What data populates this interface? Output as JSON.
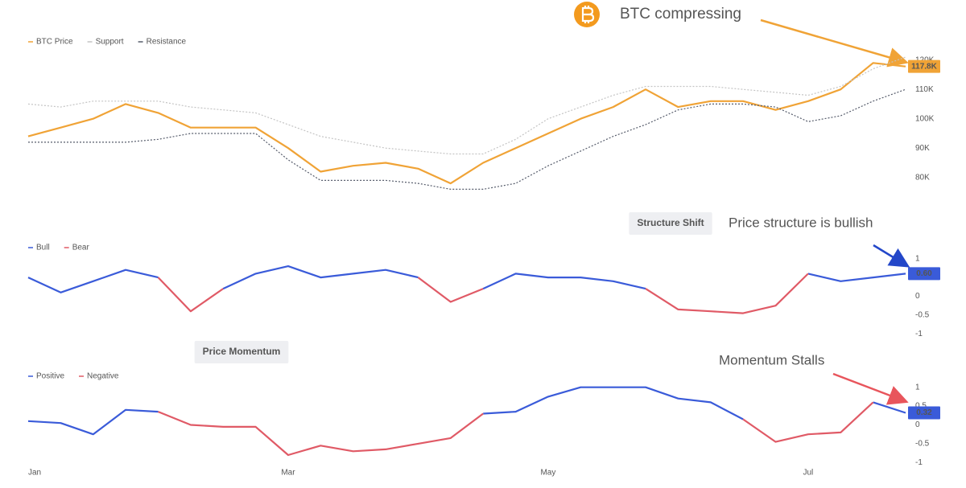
{
  "chart_data": [
    {
      "type": "line",
      "annotation": "BTC compressing",
      "ylim": [
        72000,
        124000
      ],
      "yticks": [
        {
          "value": 80000,
          "label": "80K"
        },
        {
          "value": 90000,
          "label": "90K"
        },
        {
          "value": 100000,
          "label": "100K"
        },
        {
          "value": 110000,
          "label": "110K"
        },
        {
          "value": 120000,
          "label": "120K"
        }
      ],
      "series": [
        {
          "name": "BTC Price",
          "color": "#f0a336",
          "value_tag": true,
          "values": [
            94000,
            97000,
            100000,
            105000,
            102000,
            97000,
            97000,
            97000,
            90000,
            82000,
            84000,
            85000,
            83000,
            78000,
            85000,
            90000,
            95000,
            100000,
            104000,
            110000,
            104000,
            106000,
            106000,
            103000,
            106000,
            110000,
            119000,
            117800
          ],
          "value_labels": [
            null,
            null,
            null,
            null,
            null,
            null,
            null,
            null,
            null,
            null,
            null,
            null,
            null,
            null,
            null,
            null,
            null,
            null,
            null,
            null,
            null,
            null,
            null,
            null,
            null,
            null,
            null,
            "117.8K"
          ]
        },
        {
          "name": "Support",
          "color": "#c4c4c4",
          "dashed": true,
          "values": [
            105000,
            104000,
            106000,
            106000,
            106000,
            104000,
            103000,
            102000,
            98000,
            94000,
            92000,
            90000,
            89000,
            88000,
            88000,
            93000,
            100000,
            104000,
            108000,
            111000,
            111000,
            111000,
            110000,
            109000,
            108000,
            111000,
            117000,
            121000
          ]
        },
        {
          "name": "Resistance",
          "color": "#565c6b",
          "dashed": true,
          "values": [
            92000,
            92000,
            92000,
            92000,
            93000,
            95000,
            95000,
            95000,
            86000,
            79000,
            79000,
            79000,
            78000,
            76000,
            76000,
            78000,
            84000,
            89000,
            94000,
            98000,
            103000,
            105000,
            105000,
            104000,
            99000,
            101000,
            106000,
            110000
          ]
        }
      ]
    },
    {
      "type": "line",
      "title": "Structure Shift",
      "annotation": "Price structure is bullish",
      "ylim": [
        -1.1,
        1.25
      ],
      "yticks": [
        -1,
        -0.5,
        0,
        0.5,
        1
      ],
      "series": [
        {
          "name": "Bull",
          "color": "#3a5bd9",
          "value_tag": true,
          "values": [
            0.5,
            0.1,
            0.4,
            0.7,
            0.5,
            null,
            0.2,
            0.6,
            0.8,
            0.5,
            0.6,
            0.7,
            0.5,
            null,
            0.2,
            0.6,
            0.5,
            0.5,
            0.4,
            0.2,
            null,
            null,
            null,
            null,
            0.6,
            0.4,
            0.5,
            0.6
          ],
          "value_labels": [
            null,
            null,
            null,
            null,
            null,
            null,
            null,
            null,
            null,
            null,
            null,
            null,
            null,
            null,
            null,
            null,
            null,
            null,
            null,
            null,
            null,
            null,
            null,
            null,
            null,
            null,
            null,
            "0.60"
          ]
        },
        {
          "name": "Bear",
          "color": "#e05a66",
          "values": [
            null,
            null,
            null,
            null,
            0.5,
            -0.4,
            0.2,
            null,
            null,
            null,
            null,
            null,
            0.5,
            -0.15,
            0.2,
            null,
            null,
            null,
            null,
            0.2,
            -0.35,
            -0.4,
            -0.45,
            -0.25,
            0.6,
            null,
            null,
            null
          ]
        }
      ]
    },
    {
      "type": "line",
      "title": "Price Momentum",
      "annotation": "Momentum Stalls",
      "ylim": [
        -1.1,
        1.25
      ],
      "yticks": [
        -1,
        -0.5,
        0,
        0.5,
        1
      ],
      "categories": [
        "Jan",
        null,
        null,
        null,
        null,
        null,
        null,
        null,
        "Mar",
        null,
        null,
        null,
        null,
        null,
        null,
        null,
        "May",
        null,
        null,
        null,
        null,
        null,
        null,
        null,
        "Jul",
        null,
        null,
        null
      ],
      "series": [
        {
          "name": "Positive",
          "color": "#3a5bd9",
          "value_tag": true,
          "values": [
            0.1,
            0.05,
            -0.25,
            0.4,
            0.35,
            null,
            null,
            null,
            null,
            null,
            null,
            null,
            null,
            null,
            0.3,
            0.35,
            0.75,
            1,
            1,
            1,
            0.7,
            0.6,
            0.15,
            null,
            null,
            null,
            0.6,
            0.32
          ]
        },
        {
          "name": "Negative",
          "color": "#e05a66",
          "values": [
            null,
            null,
            null,
            null,
            0.35,
            0,
            -0.05,
            -0.05,
            -0.8,
            -0.55,
            -0.7,
            -0.65,
            -0.5,
            -0.35,
            0.3,
            null,
            null,
            null,
            null,
            null,
            null,
            null,
            0.15,
            -0.45,
            -0.25,
            -0.2,
            0.6,
            null
          ]
        }
      ]
    }
  ]
}
